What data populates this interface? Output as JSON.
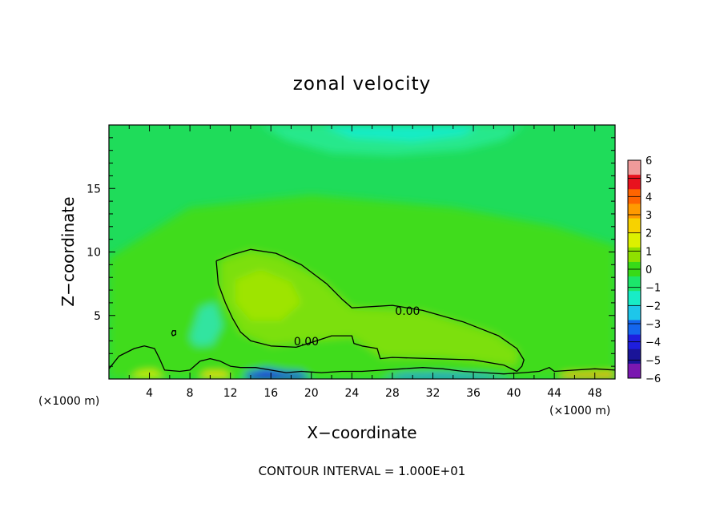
{
  "chart_data": {
    "type": "heatmap",
    "title": "zonal velocity",
    "xlabel": "X−coordinate",
    "ylabel": "Z−coordinate",
    "x_units_left": "(×1000 m)",
    "x_units_right": "(×1000 m)",
    "footer": "CONTOUR INTERVAL = 1.000E+01",
    "xlim": [
      0,
      50
    ],
    "ylim": [
      0,
      20
    ],
    "x_ticks": [
      4,
      8,
      12,
      16,
      20,
      24,
      28,
      32,
      36,
      40,
      44,
      48
    ],
    "y_ticks": [
      5,
      10,
      15
    ],
    "colorbar": {
      "levels": [
        6,
        5,
        4,
        3,
        2,
        1,
        0,
        -1,
        -2,
        -3,
        -4,
        -5,
        -6
      ],
      "labels": [
        "6",
        "5",
        "4",
        "3",
        "2",
        "1",
        "0",
        "−1",
        "−2",
        "−3",
        "−4",
        "−5",
        "−6"
      ],
      "colors": [
        "#f09a9a",
        "#e8121e",
        "#ff6400",
        "#ff9a00",
        "#f7d200",
        "#dcf000",
        "#8fe000",
        "#38da18",
        "#1ce66a",
        "#18ecc6",
        "#1ec6ea",
        "#1466ee",
        "#1e1ede",
        "#1a1498",
        "#7a18b0"
      ]
    },
    "contours": [
      {
        "level": 0.0,
        "label": "0.00",
        "label_positions": [
          [
            29.5,
            5.3
          ],
          [
            19.5,
            2.9
          ]
        ],
        "points": [
          [
            10.6,
            9.3
          ],
          [
            10.8,
            7.5
          ],
          [
            11.5,
            6.0
          ],
          [
            12.2,
            4.8
          ],
          [
            13.0,
            3.7
          ],
          [
            14.0,
            3.0
          ],
          [
            16.0,
            2.6
          ],
          [
            18.5,
            2.5
          ],
          [
            20.5,
            3.0
          ],
          [
            22.0,
            3.4
          ],
          [
            24.0,
            3.4
          ],
          [
            24.2,
            2.8
          ],
          [
            25.0,
            2.6
          ],
          [
            26.5,
            2.4
          ],
          [
            26.8,
            1.6
          ],
          [
            28.0,
            1.7
          ],
          [
            32.0,
            1.6
          ],
          [
            36.0,
            1.5
          ],
          [
            39.0,
            1.1
          ],
          [
            40.3,
            0.6
          ],
          [
            40.8,
            1.0
          ],
          [
            41.0,
            1.5
          ],
          [
            40.3,
            2.4
          ],
          [
            38.5,
            3.4
          ],
          [
            35.0,
            4.5
          ],
          [
            31.0,
            5.4
          ],
          [
            28.0,
            5.8
          ],
          [
            24.0,
            5.6
          ],
          [
            23.0,
            6.3
          ],
          [
            21.5,
            7.5
          ],
          [
            19.0,
            9.0
          ],
          [
            16.5,
            9.9
          ],
          [
            14.0,
            10.2
          ],
          [
            12.2,
            9.8
          ],
          [
            10.6,
            9.3
          ]
        ]
      },
      {
        "level": 0.0,
        "points": [
          [
            0,
            0.8
          ],
          [
            1.0,
            1.8
          ],
          [
            2.5,
            2.4
          ],
          [
            3.5,
            2.6
          ],
          [
            4.5,
            2.4
          ],
          [
            5.0,
            1.6
          ],
          [
            5.5,
            0.7
          ],
          [
            7.0,
            0.6
          ],
          [
            8.0,
            0.7
          ],
          [
            9.0,
            1.4
          ],
          [
            10.0,
            1.6
          ],
          [
            11.0,
            1.4
          ],
          [
            12.0,
            1.0
          ],
          [
            13.0,
            0.9
          ],
          [
            14.5,
            0.9
          ],
          [
            16.0,
            0.7
          ],
          [
            17.5,
            0.5
          ],
          [
            19.0,
            0.6
          ],
          [
            21.0,
            0.5
          ],
          [
            23.0,
            0.6
          ],
          [
            25.0,
            0.6
          ],
          [
            27.0,
            0.7
          ],
          [
            29.0,
            0.8
          ],
          [
            31.0,
            0.9
          ],
          [
            33.0,
            0.8
          ],
          [
            35.0,
            0.6
          ],
          [
            37.0,
            0.5
          ],
          [
            39.0,
            0.4
          ],
          [
            41.0,
            0.5
          ],
          [
            42.5,
            0.6
          ],
          [
            43.5,
            0.9
          ],
          [
            44.0,
            0.6
          ],
          [
            46.0,
            0.7
          ],
          [
            48.0,
            0.8
          ],
          [
            50.0,
            0.7
          ]
        ]
      },
      {
        "level": 0.0,
        "points": [
          [
            6.3,
            3.4
          ],
          [
            6.6,
            3.5
          ],
          [
            6.6,
            3.8
          ],
          [
            6.3,
            3.8
          ],
          [
            6.2,
            3.6
          ],
          [
            6.3,
            3.4
          ]
        ]
      }
    ],
    "regions": [
      {
        "value": 0.5,
        "color": "#40dc1c",
        "points": [
          [
            0,
            9.5
          ],
          [
            8,
            13.5
          ],
          [
            20,
            14.5
          ],
          [
            34,
            13.5
          ],
          [
            44,
            12
          ],
          [
            50,
            10.5
          ],
          [
            50,
            0
          ],
          [
            0,
            0
          ]
        ]
      },
      {
        "value": 1.0,
        "color": "#7be008",
        "points": [
          [
            11,
            9.3
          ],
          [
            14,
            10.1
          ],
          [
            17,
            9.6
          ],
          [
            21,
            7.8
          ],
          [
            24,
            5.6
          ],
          [
            31,
            5.3
          ],
          [
            38,
            3.6
          ],
          [
            40.5,
            2.2
          ],
          [
            40.2,
            1.0
          ],
          [
            33,
            1.7
          ],
          [
            27,
            1.7
          ],
          [
            24,
            3.3
          ],
          [
            20,
            3.0
          ],
          [
            16,
            2.6
          ],
          [
            13,
            3.6
          ],
          [
            11,
            6.5
          ]
        ]
      },
      {
        "value": 1.5,
        "color": "#9ee400",
        "points": [
          [
            12.5,
            7.8
          ],
          [
            15,
            8.6
          ],
          [
            18,
            7.6
          ],
          [
            19,
            6.0
          ],
          [
            17,
            4.6
          ],
          [
            14,
            4.6
          ],
          [
            12.5,
            6.0
          ]
        ]
      },
      {
        "value": -1.0,
        "color": "#28e88c",
        "points": [
          [
            15,
            20
          ],
          [
            17.5,
            18.8
          ],
          [
            22,
            17.8
          ],
          [
            28,
            17.6
          ],
          [
            35,
            18.0
          ],
          [
            39,
            18.8
          ],
          [
            41,
            20
          ]
        ]
      },
      {
        "value": -1.5,
        "color": "#18ecc6",
        "points": [
          [
            21,
            20
          ],
          [
            24,
            19.0
          ],
          [
            30,
            18.7
          ],
          [
            35,
            19.2
          ],
          [
            36.5,
            20
          ]
        ]
      },
      {
        "value": -2.0,
        "color": "#2ac8ec",
        "points": [
          [
            8.8,
            3.6
          ],
          [
            9.6,
            4.9
          ],
          [
            10.3,
            5.1
          ],
          [
            10.6,
            4.0
          ],
          [
            9.8,
            3.2
          ],
          [
            9.0,
            3.0
          ]
        ]
      },
      {
        "value": -1.0,
        "color": "#30e4a0",
        "points": [
          [
            8.0,
            3.2
          ],
          [
            9.0,
            5.6
          ],
          [
            10.5,
            6.0
          ],
          [
            11.2,
            4.2
          ],
          [
            10.2,
            2.7
          ],
          [
            8.6,
            2.6
          ]
        ]
      },
      {
        "value": -4.0,
        "color": "#1e2ee0",
        "points": [
          [
            13.5,
            0
          ],
          [
            13.5,
            0.5
          ],
          [
            15.5,
            0.85
          ],
          [
            17.5,
            0.6
          ],
          [
            19.0,
            0.55
          ],
          [
            20.0,
            0
          ]
        ]
      },
      {
        "value": -3.0,
        "color": "#1a7cea",
        "points": [
          [
            27,
            0
          ],
          [
            29,
            0.35
          ],
          [
            33,
            0.4
          ],
          [
            37,
            0.3
          ],
          [
            40,
            0
          ]
        ]
      },
      {
        "value": 2.5,
        "color": "#f0dc00",
        "points": [
          [
            9,
            0
          ],
          [
            9.5,
            0.55
          ],
          [
            11.5,
            0.55
          ],
          [
            12,
            0
          ]
        ]
      },
      {
        "value": 3.0,
        "color": "#ffae00",
        "points": [
          [
            44.5,
            0
          ],
          [
            45,
            0.4
          ],
          [
            48,
            0.45
          ],
          [
            50,
            0.5
          ],
          [
            50,
            0
          ]
        ]
      },
      {
        "value": 2.0,
        "color": "#cfe800",
        "points": [
          [
            2,
            0
          ],
          [
            3,
            0.6
          ],
          [
            4.5,
            0.7
          ],
          [
            5.5,
            0
          ]
        ]
      }
    ]
  }
}
